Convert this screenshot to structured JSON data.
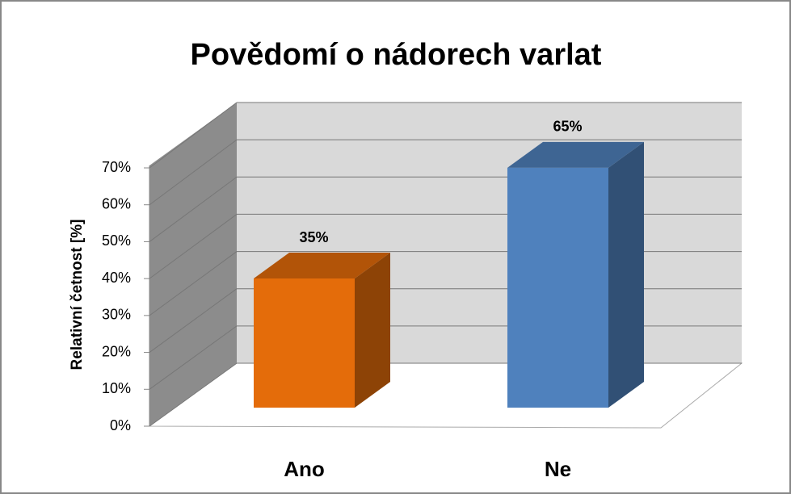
{
  "chart_data": {
    "type": "bar3d",
    "title": "Povědomí o nádorech varlat",
    "y_label": "Relativní četnost [%]",
    "categories": [
      "Ano",
      "Ne"
    ],
    "values": [
      35,
      65
    ],
    "value_labels": [
      "35%",
      "65%"
    ],
    "colors": [
      "#e46c0a",
      "#4f81bd"
    ],
    "ylim": [
      0,
      70
    ],
    "yticks": [
      {
        "value": 0,
        "label": "0%"
      },
      {
        "value": 10,
        "label": "10%"
      },
      {
        "value": 20,
        "label": "20%"
      },
      {
        "value": 30,
        "label": "30%"
      },
      {
        "value": 40,
        "label": "40%"
      },
      {
        "value": 50,
        "label": "50%"
      },
      {
        "value": 60,
        "label": "60%"
      },
      {
        "value": 70,
        "label": "70%"
      }
    ],
    "grid": true
  }
}
